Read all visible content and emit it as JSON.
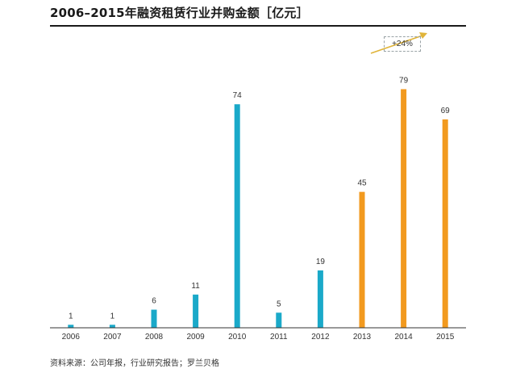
{
  "chart_data": {
    "type": "bar",
    "title": "2006–2015年融资租赁行业并购金额［亿元］",
    "categories": [
      "2006",
      "2007",
      "2008",
      "2009",
      "2010",
      "2011",
      "2012",
      "2013",
      "2014",
      "2015"
    ],
    "values": [
      1,
      1,
      6,
      11,
      74,
      5,
      19,
      45,
      79,
      69
    ],
    "bar_colors": [
      "#1aa9c9",
      "#1aa9c9",
      "#1aa9c9",
      "#1aa9c9",
      "#1aa9c9",
      "#1aa9c9",
      "#1aa9c9",
      "#f29a1f",
      "#f29a1f",
      "#f29a1f"
    ],
    "ylim": [
      0,
      85
    ],
    "grid": false,
    "xlabel": "",
    "ylabel": "",
    "annotations": [
      {
        "text": "+24%",
        "arrow_color": "#e0b43a"
      }
    ]
  },
  "source": "资料来源：公司年报，行业研究报告；罗兰贝格"
}
